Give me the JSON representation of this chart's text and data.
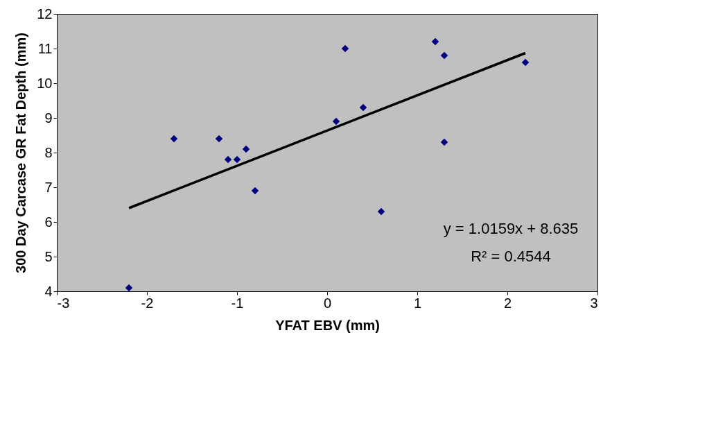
{
  "chart_data": {
    "type": "scatter",
    "xlabel": "YFAT EBV (mm)",
    "ylabel": "300 Day Carcase GR Fat Depth (mm)",
    "xlim": [
      -3,
      3
    ],
    "xticks": [
      -3,
      -2,
      -1,
      0,
      1,
      2,
      3
    ],
    "ylim": [
      4,
      12
    ],
    "yticks": [
      4,
      5,
      6,
      7,
      8,
      9,
      10,
      11,
      12
    ],
    "grid": false,
    "legend": false,
    "series": [
      {
        "marker": "diamond",
        "color": "#000080",
        "x": [
          -2.2,
          -1.7,
          -1.2,
          -1.1,
          -1.0,
          -0.9,
          -0.8,
          0.1,
          0.2,
          0.4,
          0.6,
          1.2,
          1.3,
          1.3,
          2.2
        ],
        "values": [
          4.1,
          8.4,
          8.4,
          7.8,
          7.8,
          8.1,
          6.9,
          8.9,
          11.0,
          9.3,
          6.3,
          11.2,
          10.8,
          8.3,
          10.6
        ]
      },
      {
        "type": "line",
        "line_style": "solid",
        "color": "#000000",
        "x": [
          -2.2,
          2.2
        ],
        "values": [
          6.4,
          10.87
        ]
      }
    ],
    "annotations": [
      "y = 1.0159x + 8.635",
      "R² = 0.4544"
    ]
  }
}
